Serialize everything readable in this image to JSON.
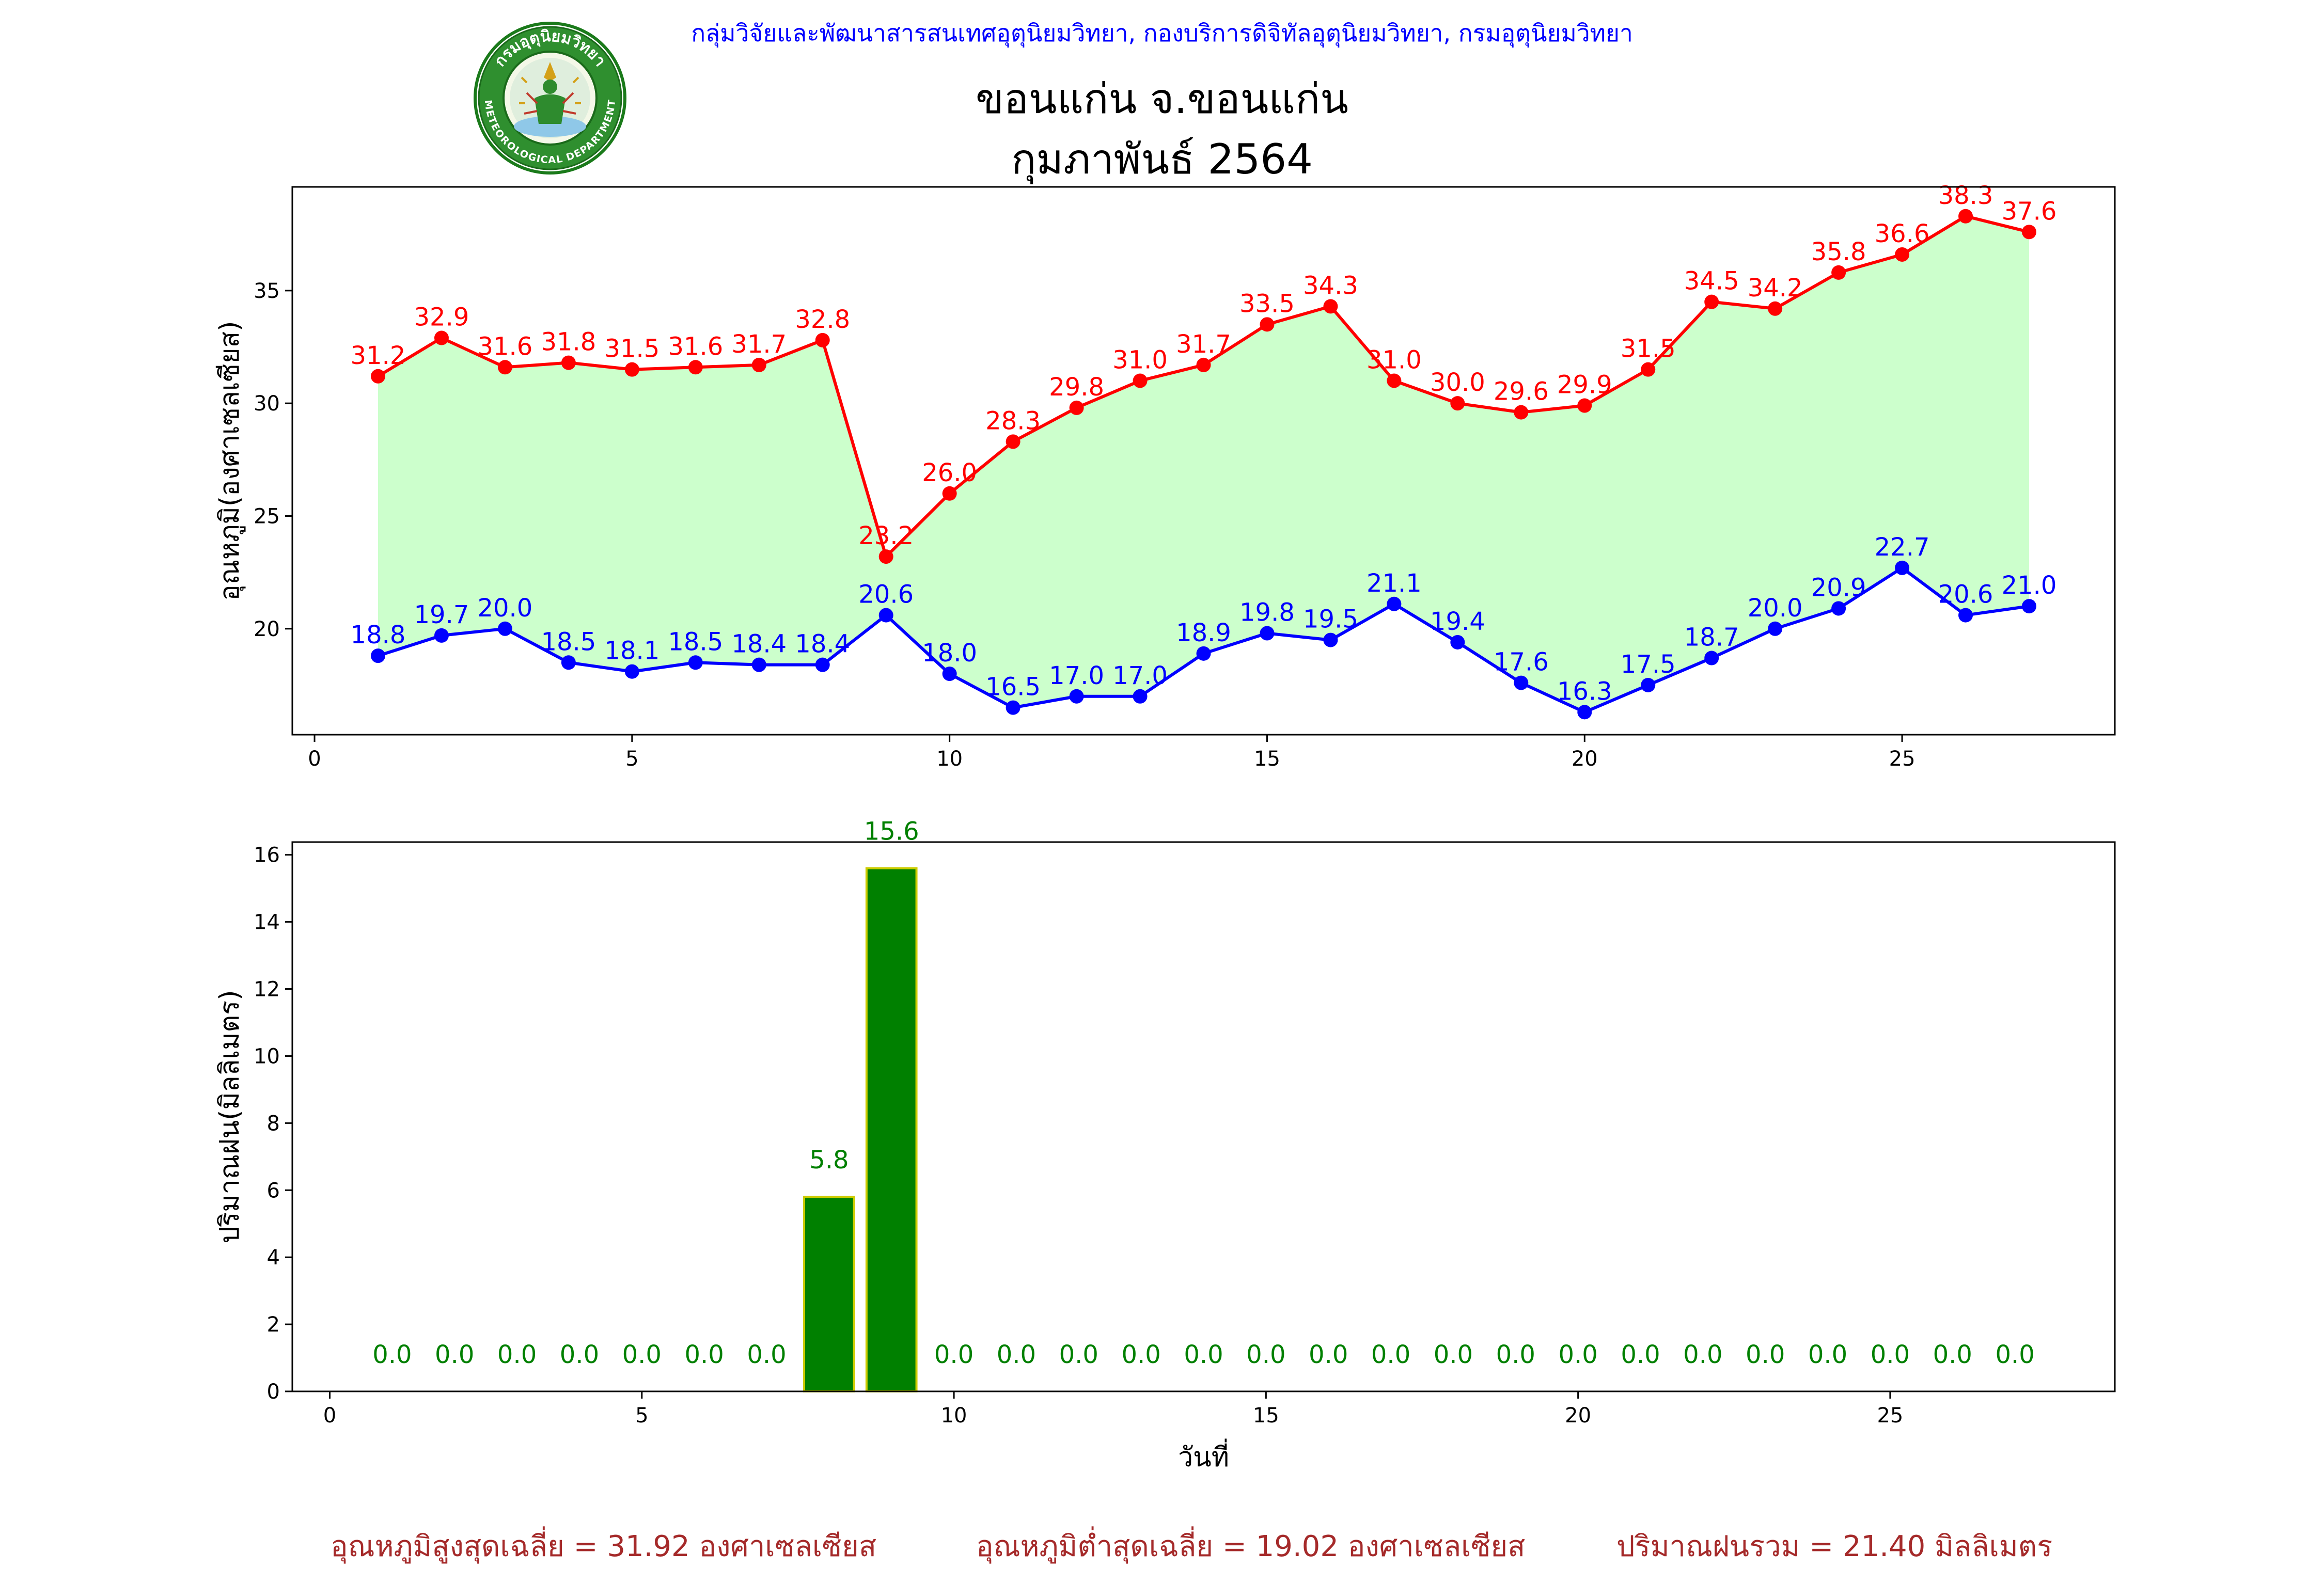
{
  "header": {
    "org_line": "กลุ่มวิจัยและพัฒนาสารสนเทศอุตุนิยมวิทยา, กองบริการดิจิทัลอุตุนิยมวิทยา, กรมอุตุนิยมวิทยา",
    "title_line1": "ขอนแก่น จ.ขอนแก่น",
    "title_line2": "กุมภาพันธ์ 2564",
    "logo_text_top": "กรมอุตุนิยมวิทยา",
    "logo_text_bottom": "METEOROLOGICAL DEPARTMENT"
  },
  "colors": {
    "max_line": "#ff0000",
    "min_line": "#0000ff",
    "fill": "#ccffcc",
    "rain_bar": "#008000",
    "rain_edge": "#cccc00",
    "footer": "#a52a2a"
  },
  "chart_data": [
    {
      "type": "line",
      "ylabel": "อุณหภูมิ(องศาเซลเซียส)",
      "xlabel": "",
      "xlim": [
        -0.35,
        28.35
      ],
      "ylim": [
        15.3,
        39.6
      ],
      "xticks": [
        0,
        5,
        10,
        15,
        20,
        25
      ],
      "yticks": [
        20,
        25,
        30,
        35
      ],
      "fill_between": true,
      "x": [
        1,
        2,
        3,
        4,
        5,
        6,
        7,
        8,
        9,
        10,
        11,
        12,
        13,
        14,
        15,
        16,
        17,
        18,
        19,
        20,
        21,
        22,
        23,
        24,
        25,
        26,
        27
      ],
      "series": [
        {
          "key": "max",
          "values": [
            31.2,
            32.9,
            31.6,
            31.8,
            31.5,
            31.6,
            31.7,
            32.8,
            23.2,
            26.0,
            28.3,
            29.8,
            31.0,
            31.7,
            33.5,
            34.3,
            31.0,
            30.0,
            29.6,
            29.9,
            31.5,
            34.5,
            34.2,
            35.8,
            36.6,
            38.3,
            37.6
          ]
        },
        {
          "key": "min",
          "values": [
            18.8,
            19.7,
            20.0,
            18.5,
            18.1,
            18.5,
            18.4,
            18.4,
            20.6,
            18.0,
            16.5,
            17.0,
            17.0,
            18.9,
            19.8,
            19.5,
            21.1,
            19.4,
            17.6,
            16.3,
            17.5,
            18.7,
            20.0,
            20.9,
            22.7,
            20.6,
            21.0
          ]
        }
      ]
    },
    {
      "type": "bar",
      "ylabel": "ปริมาณฝน(มิลลิเมตร)",
      "xlabel": "วันที่",
      "xlim": [
        -0.6,
        28.6
      ],
      "ylim": [
        0,
        16.38
      ],
      "xticks": [
        0,
        5,
        10,
        15,
        20,
        25
      ],
      "yticks": [
        0,
        2,
        4,
        6,
        8,
        10,
        12,
        14,
        16
      ],
      "x": [
        1,
        2,
        3,
        4,
        5,
        6,
        7,
        8,
        9,
        10,
        11,
        12,
        13,
        14,
        15,
        16,
        17,
        18,
        19,
        20,
        21,
        22,
        23,
        24,
        25,
        26,
        27
      ],
      "values": [
        0.0,
        0.0,
        0.0,
        0.0,
        0.0,
        0.0,
        0.0,
        5.8,
        15.6,
        0.0,
        0.0,
        0.0,
        0.0,
        0.0,
        0.0,
        0.0,
        0.0,
        0.0,
        0.0,
        0.0,
        0.0,
        0.0,
        0.0,
        0.0,
        0.0,
        0.0,
        0.0
      ]
    }
  ],
  "footer": {
    "avg_max": "อุณหภูมิสูงสุดเฉลี่ย = 31.92 องศาเซลเซียส",
    "avg_min": "อุณหภูมิต่ำสุดเฉลี่ย = 19.02 องศาเซลเซียส",
    "total_rain": "ปริมาณฝนรวม = 21.40 มิลลิเมตร"
  }
}
